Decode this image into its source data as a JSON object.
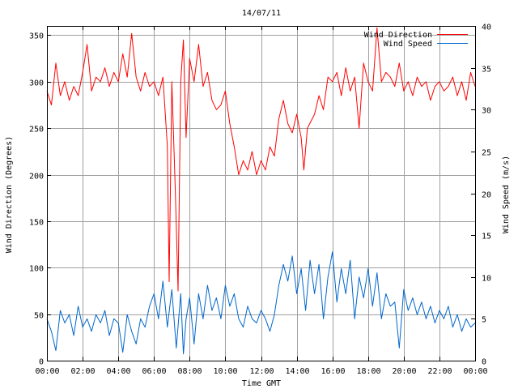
{
  "chart_data": {
    "type": "line",
    "title": "14/07/11",
    "xlabel": "Time GMT",
    "ylabel": "Wind Direction (Degrees)",
    "y2label": "Wind Speed (m/s)",
    "x_tick_labels": [
      "00:00",
      "02:00",
      "04:00",
      "06:00",
      "08:00",
      "10:00",
      "12:00",
      "14:00",
      "16:00",
      "18:00",
      "20:00",
      "22:00",
      "00:00"
    ],
    "y_tick_labels": [
      "0",
      "50",
      "100",
      "150",
      "200",
      "250",
      "300",
      "350"
    ],
    "y2_tick_labels": [
      "0",
      "5",
      "10",
      "15",
      "20",
      "25",
      "30",
      "35",
      "40"
    ],
    "xlim_hours": [
      0,
      24
    ],
    "ylim": [
      0,
      360
    ],
    "y2lim": [
      0,
      40
    ],
    "grid": true,
    "legend_position": "top-right",
    "colors": {
      "direction": "#ff0000",
      "speed": "#0066cc",
      "grid": "#a0a0a0"
    },
    "series": [
      {
        "name": "Wind Direction",
        "axis": "left",
        "points": [
          [
            0,
            290
          ],
          [
            0.25,
            275
          ],
          [
            0.5,
            320
          ],
          [
            0.75,
            285
          ],
          [
            1,
            300
          ],
          [
            1.25,
            280
          ],
          [
            1.5,
            295
          ],
          [
            1.75,
            285
          ],
          [
            2,
            310
          ],
          [
            2.25,
            340
          ],
          [
            2.5,
            290
          ],
          [
            2.75,
            305
          ],
          [
            3,
            300
          ],
          [
            3.25,
            315
          ],
          [
            3.5,
            295
          ],
          [
            3.75,
            310
          ],
          [
            4,
            300
          ],
          [
            4.25,
            330
          ],
          [
            4.5,
            305
          ],
          [
            4.75,
            352
          ],
          [
            5,
            305
          ],
          [
            5.25,
            290
          ],
          [
            5.5,
            310
          ],
          [
            5.75,
            295
          ],
          [
            6,
            300
          ],
          [
            6.25,
            285
          ],
          [
            6.5,
            305
          ],
          [
            6.75,
            230
          ],
          [
            6.85,
            85
          ],
          [
            7,
            300
          ],
          [
            7.2,
            180
          ],
          [
            7.35,
            75
          ],
          [
            7.5,
            300
          ],
          [
            7.65,
            345
          ],
          [
            7.8,
            240
          ],
          [
            8,
            325
          ],
          [
            8.25,
            300
          ],
          [
            8.5,
            340
          ],
          [
            8.75,
            295
          ],
          [
            9,
            310
          ],
          [
            9.25,
            280
          ],
          [
            9.5,
            270
          ],
          [
            9.75,
            275
          ],
          [
            10,
            290
          ],
          [
            10.25,
            255
          ],
          [
            10.5,
            230
          ],
          [
            10.75,
            200
          ],
          [
            11,
            215
          ],
          [
            11.25,
            205
          ],
          [
            11.5,
            225
          ],
          [
            11.75,
            200
          ],
          [
            12,
            215
          ],
          [
            12.25,
            205
          ],
          [
            12.5,
            230
          ],
          [
            12.75,
            220
          ],
          [
            13,
            260
          ],
          [
            13.25,
            280
          ],
          [
            13.5,
            255
          ],
          [
            13.75,
            245
          ],
          [
            14,
            265
          ],
          [
            14.25,
            240
          ],
          [
            14.4,
            205
          ],
          [
            14.6,
            250
          ],
          [
            15,
            265
          ],
          [
            15.25,
            285
          ],
          [
            15.5,
            270
          ],
          [
            15.75,
            305
          ],
          [
            16,
            300
          ],
          [
            16.25,
            310
          ],
          [
            16.5,
            285
          ],
          [
            16.75,
            315
          ],
          [
            17,
            290
          ],
          [
            17.25,
            305
          ],
          [
            17.5,
            250
          ],
          [
            17.75,
            320
          ],
          [
            18,
            300
          ],
          [
            18.25,
            290
          ],
          [
            18.5,
            358
          ],
          [
            18.75,
            300
          ],
          [
            19,
            310
          ],
          [
            19.25,
            305
          ],
          [
            19.5,
            295
          ],
          [
            19.75,
            320
          ],
          [
            20,
            290
          ],
          [
            20.25,
            300
          ],
          [
            20.5,
            285
          ],
          [
            20.75,
            305
          ],
          [
            21,
            295
          ],
          [
            21.25,
            300
          ],
          [
            21.5,
            280
          ],
          [
            21.75,
            295
          ],
          [
            22,
            300
          ],
          [
            22.25,
            290
          ],
          [
            22.5,
            295
          ],
          [
            22.75,
            305
          ],
          [
            23,
            285
          ],
          [
            23.25,
            300
          ],
          [
            23.5,
            280
          ],
          [
            23.75,
            310
          ],
          [
            24,
            295
          ]
        ]
      },
      {
        "name": "Wind Speed",
        "axis": "right",
        "points": [
          [
            0,
            5
          ],
          [
            0.25,
            3.5
          ],
          [
            0.5,
            1.2
          ],
          [
            0.75,
            6
          ],
          [
            1,
            4.5
          ],
          [
            1.25,
            5.5
          ],
          [
            1.5,
            3
          ],
          [
            1.75,
            6.5
          ],
          [
            2,
            4
          ],
          [
            2.25,
            5
          ],
          [
            2.5,
            3.5
          ],
          [
            2.75,
            5.5
          ],
          [
            3,
            4.5
          ],
          [
            3.25,
            6
          ],
          [
            3.5,
            3
          ],
          [
            3.75,
            5
          ],
          [
            4,
            4.5
          ],
          [
            4.25,
            1
          ],
          [
            4.5,
            5.5
          ],
          [
            4.75,
            3.5
          ],
          [
            5,
            2
          ],
          [
            5.25,
            5
          ],
          [
            5.5,
            4
          ],
          [
            5.75,
            6.5
          ],
          [
            6,
            8
          ],
          [
            6.25,
            5
          ],
          [
            6.5,
            9.5
          ],
          [
            6.75,
            4
          ],
          [
            7,
            8.5
          ],
          [
            7.25,
            1.5
          ],
          [
            7.5,
            8
          ],
          [
            7.65,
            0.8
          ],
          [
            7.8,
            5
          ],
          [
            8,
            7.5
          ],
          [
            8.25,
            2
          ],
          [
            8.5,
            8
          ],
          [
            8.75,
            5
          ],
          [
            9,
            9
          ],
          [
            9.25,
            6
          ],
          [
            9.5,
            7.5
          ],
          [
            9.75,
            5
          ],
          [
            10,
            9
          ],
          [
            10.25,
            6.5
          ],
          [
            10.5,
            8
          ],
          [
            10.75,
            5
          ],
          [
            11,
            4
          ],
          [
            11.25,
            6.5
          ],
          [
            11.5,
            5
          ],
          [
            11.75,
            4.5
          ],
          [
            12,
            6
          ],
          [
            12.25,
            5
          ],
          [
            12.5,
            3.5
          ],
          [
            12.75,
            5.5
          ],
          [
            13,
            9
          ],
          [
            13.25,
            11.5
          ],
          [
            13.5,
            9.5
          ],
          [
            13.75,
            12.5
          ],
          [
            14,
            8
          ],
          [
            14.25,
            11
          ],
          [
            14.5,
            6
          ],
          [
            14.75,
            12
          ],
          [
            15,
            8
          ],
          [
            15.25,
            11.5
          ],
          [
            15.5,
            5
          ],
          [
            15.75,
            10
          ],
          [
            16,
            13
          ],
          [
            16.25,
            7
          ],
          [
            16.5,
            11
          ],
          [
            16.75,
            8
          ],
          [
            17,
            12
          ],
          [
            17.25,
            5
          ],
          [
            17.5,
            10
          ],
          [
            17.75,
            7.5
          ],
          [
            18,
            11
          ],
          [
            18.25,
            6.5
          ],
          [
            18.5,
            10.5
          ],
          [
            18.75,
            5
          ],
          [
            19,
            8
          ],
          [
            19.25,
            6.5
          ],
          [
            19.5,
            7
          ],
          [
            19.75,
            1.5
          ],
          [
            20,
            8.5
          ],
          [
            20.25,
            6
          ],
          [
            20.5,
            7.5
          ],
          [
            20.75,
            5.5
          ],
          [
            21,
            7
          ],
          [
            21.25,
            5
          ],
          [
            21.5,
            6.5
          ],
          [
            21.75,
            4.5
          ],
          [
            22,
            6
          ],
          [
            22.25,
            5
          ],
          [
            22.5,
            6.5
          ],
          [
            22.75,
            4
          ],
          [
            23,
            5.5
          ],
          [
            23.25,
            3.5
          ],
          [
            23.5,
            5
          ],
          [
            23.75,
            4
          ],
          [
            24,
            4.5
          ]
        ]
      }
    ]
  }
}
